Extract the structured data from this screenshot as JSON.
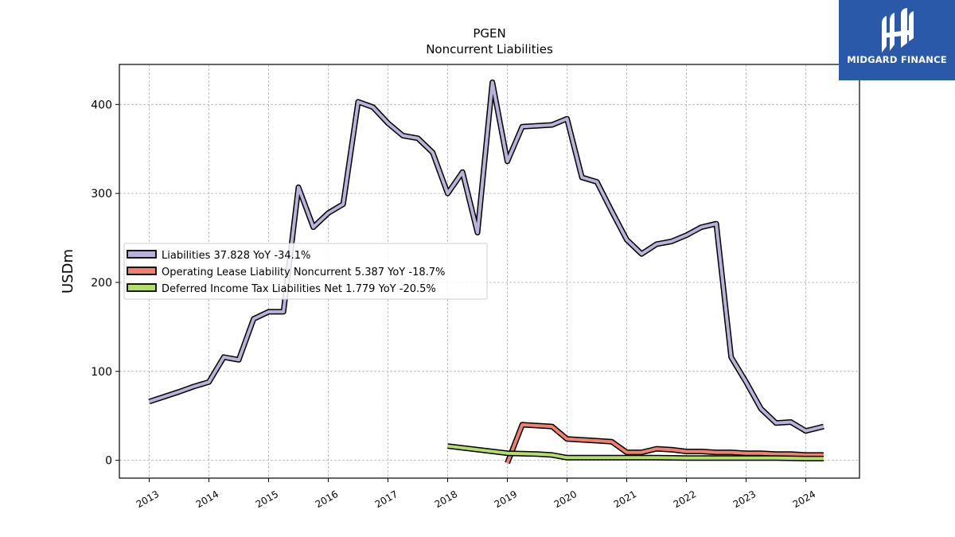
{
  "chart_data": {
    "type": "line",
    "title": "PGEN",
    "subtitle": "Noncurrent  Liabilities",
    "ylabel": "USDm",
    "xlim": [
      2012.5,
      2024.9
    ],
    "ylim": [
      -20,
      445
    ],
    "yticks": [
      0,
      100,
      200,
      300,
      400
    ],
    "xticks": [
      "2013",
      "2014",
      "2015",
      "2016",
      "2017",
      "2018",
      "2019",
      "2020",
      "2021",
      "2022",
      "2023",
      "2024"
    ],
    "grid": true,
    "legend_position": "center-left",
    "series": [
      {
        "name": "Liabilities",
        "legend": "Liabilities  37.828 YoY -34.1%",
        "color": "#b9b3d9",
        "x": [
          2013.0,
          2013.5,
          2013.75,
          2014.0,
          2014.25,
          2014.5,
          2014.75,
          2015.0,
          2015.25,
          2015.5,
          2015.75,
          2016.0,
          2016.25,
          2016.5,
          2016.75,
          2017.0,
          2017.25,
          2017.5,
          2017.75,
          2018.0,
          2018.25,
          2018.5,
          2018.75,
          2019.0,
          2019.25,
          2019.75,
          2020.0,
          2020.25,
          2020.5,
          2020.75,
          2021.0,
          2021.25,
          2021.5,
          2021.75,
          2022.0,
          2022.25,
          2022.5,
          2022.75,
          2023.0,
          2023.25,
          2023.5,
          2023.75,
          2024.0,
          2024.3
        ],
        "y": [
          66,
          77,
          83,
          88,
          116,
          113,
          159,
          167,
          167,
          307,
          262,
          278,
          288,
          403,
          397,
          379,
          365,
          362,
          346,
          300,
          324,
          256,
          425,
          336,
          375,
          377,
          384,
          318,
          313,
          280,
          248,
          232,
          243,
          246,
          253,
          262,
          266,
          116,
          88,
          58,
          42,
          43,
          33,
          38
        ]
      },
      {
        "name": "Operating Lease Liability Noncurrent",
        "legend": "Operating Lease Liability Noncurrent  5.387 YoY -18.7%",
        "color": "#f08070",
        "x": [
          2019.0,
          2019.25,
          2019.5,
          2019.75,
          2020.0,
          2020.25,
          2020.5,
          2020.75,
          2021.0,
          2021.25,
          2021.5,
          2021.75,
          2022.0,
          2022.25,
          2022.5,
          2022.75,
          2023.0,
          2023.25,
          2023.5,
          2023.75,
          2024.0,
          2024.3
        ],
        "y": [
          -3,
          40,
          39,
          38,
          24,
          23,
          22,
          21,
          9,
          9,
          13,
          12,
          10,
          10,
          9,
          9,
          8,
          8,
          7,
          7,
          6,
          6
        ]
      },
      {
        "name": "Deferred Income Tax Liabilities Net",
        "legend": "Deferred Income Tax Liabilities Net  1.779 YoY -20.5%",
        "color": "#b3de69",
        "x": [
          2018.0,
          2018.5,
          2019.0,
          2019.5,
          2019.75,
          2020.0,
          2020.5,
          2021.0,
          2021.5,
          2022.0,
          2022.5,
          2023.0,
          2023.5,
          2024.0,
          2024.3
        ],
        "y": [
          16,
          12,
          8,
          7,
          6,
          3,
          3,
          3,
          3,
          2.5,
          2.5,
          2.5,
          2.5,
          2,
          2
        ]
      }
    ]
  },
  "logo": {
    "text": "MIDGARD FINANCE",
    "color": "#2b59aa"
  }
}
